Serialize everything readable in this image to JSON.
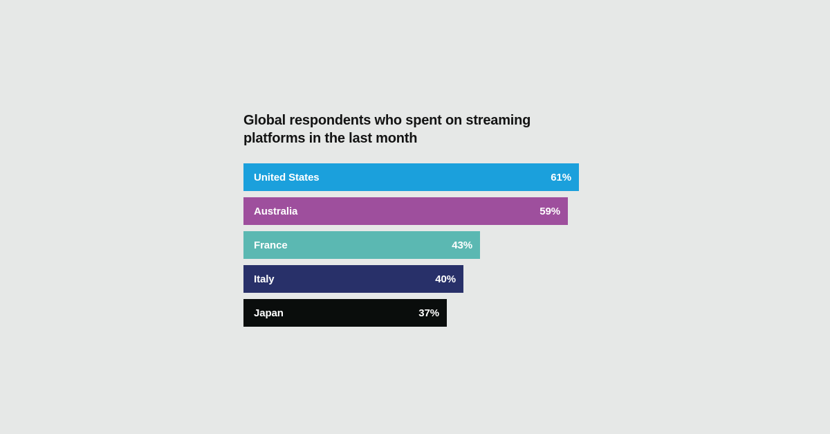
{
  "page": {
    "background_color": "#e6e8e7"
  },
  "chart_data": {
    "type": "bar",
    "orientation": "horizontal",
    "title": "Global respondents who spent on streaming platforms in the last month",
    "categories": [
      "United States",
      "Australia",
      "France",
      "Italy",
      "Japan"
    ],
    "values": [
      61,
      59,
      43,
      40,
      37
    ],
    "value_labels": [
      "61%",
      "59%",
      "43%",
      "40%",
      "37%"
    ],
    "bar_colors": [
      "#1ba0dc",
      "#9e4f9d",
      "#5bb8b2",
      "#283069",
      "#0a0d0c"
    ],
    "title_color": "#131313",
    "bar_text_color": "#ffffff",
    "xlim": [
      0,
      100
    ],
    "grid": false,
    "legend": false,
    "value_label_position": "inside-right",
    "category_label_position": "inside-left"
  }
}
